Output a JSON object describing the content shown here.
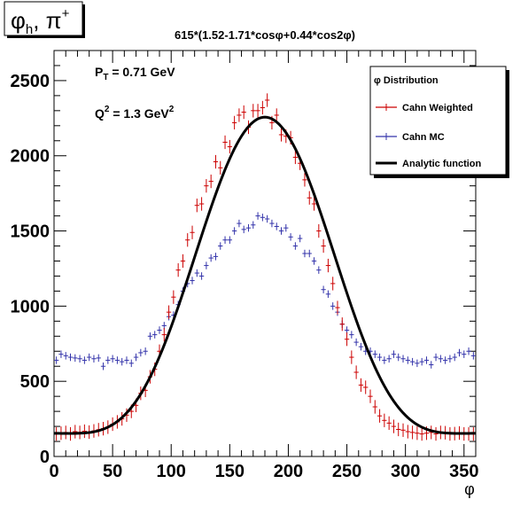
{
  "figure": {
    "tag_main": "φ",
    "tag_sub": "h",
    "tag_rest": ", π",
    "tag_sup": "+",
    "title": "615*(1.52-1.71*cosφ+0.44*cos2φ)",
    "xlabel": "φ",
    "ann_pt_main": "P",
    "ann_pt_sub": "T",
    "ann_pt_rest": " = 0.71 GeV",
    "ann_q2_main": "Q",
    "ann_q2_sup": "2",
    "ann_q2_rest": " = 1.3 GeV",
    "ann_q2_sup2": "2"
  },
  "legend": {
    "header": "φ Distribution",
    "entries": [
      {
        "label": "Cahn Weighted",
        "color": "#cc0000"
      },
      {
        "label": "Cahn MC",
        "color": "#3333aa"
      },
      {
        "label": "Analytic function",
        "color": "#000000"
      }
    ]
  },
  "chart_data": {
    "type": "scatter",
    "title": "615*(1.52-1.71*cosφ+0.44*cos2φ)",
    "xlabel": "φ",
    "ylabel": "",
    "xlim": [
      0,
      360
    ],
    "ylim": [
      0,
      2700
    ],
    "xticks": [
      0,
      50,
      100,
      150,
      200,
      250,
      300,
      350
    ],
    "yticks": [
      0,
      500,
      1000,
      1500,
      2000,
      2500
    ],
    "grid": false,
    "legend_position": "top-right",
    "function": {
      "name": "Analytic function",
      "scale": 615,
      "a0": 1.52,
      "a1": -1.71,
      "a2": 0.44,
      "color": "#000000"
    },
    "series": [
      {
        "name": "Cahn Weighted",
        "color": "#cc0000",
        "x": [
          2,
          6,
          10,
          14,
          18,
          22,
          26,
          30,
          34,
          38,
          42,
          46,
          50,
          54,
          58,
          62,
          66,
          70,
          74,
          78,
          82,
          86,
          90,
          94,
          98,
          102,
          106,
          110,
          114,
          118,
          122,
          126,
          130,
          134,
          138,
          142,
          146,
          150,
          154,
          158,
          162,
          166,
          170,
          174,
          178,
          182,
          186,
          190,
          194,
          198,
          202,
          206,
          210,
          214,
          218,
          222,
          226,
          230,
          234,
          238,
          242,
          246,
          250,
          254,
          258,
          262,
          266,
          270,
          274,
          278,
          282,
          286,
          290,
          294,
          298,
          302,
          306,
          310,
          314,
          318,
          322,
          326,
          330,
          334,
          338,
          342,
          346,
          350,
          354,
          358
        ],
        "y": [
          150,
          155,
          160,
          150,
          165,
          160,
          168,
          162,
          170,
          178,
          185,
          195,
          215,
          230,
          250,
          275,
          300,
          340,
          420,
          440,
          530,
          580,
          700,
          810,
          960,
          1060,
          1240,
          1300,
          1440,
          1490,
          1670,
          1680,
          1800,
          1830,
          1960,
          1920,
          2090,
          2060,
          2220,
          2270,
          2290,
          2190,
          2300,
          2300,
          2320,
          2370,
          2220,
          2270,
          2140,
          2130,
          2120,
          1990,
          1950,
          1840,
          1720,
          1680,
          1500,
          1400,
          1270,
          1150,
          990,
          880,
          780,
          660,
          560,
          475,
          460,
          400,
          330,
          270,
          240,
          222,
          200,
          180,
          175,
          165,
          160,
          155,
          150,
          155,
          160,
          150,
          160,
          158,
          150,
          152,
          156,
          150,
          150,
          150
        ],
        "yerr": 45
      },
      {
        "name": "Cahn MC",
        "color": "#3333aa",
        "x": [
          2,
          6,
          10,
          14,
          18,
          22,
          26,
          30,
          34,
          38,
          42,
          46,
          50,
          54,
          58,
          62,
          66,
          70,
          74,
          78,
          82,
          86,
          90,
          94,
          98,
          102,
          106,
          110,
          114,
          118,
          122,
          126,
          130,
          134,
          138,
          142,
          146,
          150,
          154,
          158,
          162,
          166,
          170,
          174,
          178,
          182,
          186,
          190,
          194,
          198,
          202,
          206,
          210,
          214,
          218,
          222,
          226,
          230,
          234,
          238,
          242,
          246,
          250,
          254,
          258,
          262,
          266,
          270,
          274,
          278,
          282,
          286,
          290,
          294,
          298,
          302,
          306,
          310,
          314,
          318,
          322,
          326,
          330,
          334,
          338,
          342,
          346,
          350,
          354,
          358
        ],
        "y": [
          640,
          680,
          670,
          660,
          655,
          650,
          640,
          660,
          650,
          655,
          600,
          640,
          650,
          640,
          630,
          640,
          620,
          660,
          690,
          700,
          800,
          810,
          840,
          870,
          930,
          940,
          1010,
          1100,
          1150,
          1170,
          1220,
          1200,
          1270,
          1320,
          1330,
          1400,
          1440,
          1440,
          1500,
          1550,
          1510,
          1520,
          1540,
          1600,
          1590,
          1580,
          1550,
          1530,
          1500,
          1520,
          1460,
          1400,
          1450,
          1350,
          1350,
          1300,
          1240,
          1110,
          1080,
          1000,
          960,
          880,
          840,
          810,
          760,
          730,
          700,
          700,
          680,
          660,
          640,
          650,
          680,
          660,
          650,
          640,
          630,
          620,
          630,
          640,
          610,
          660,
          650,
          640,
          650,
          660,
          690,
          680,
          700,
          670
        ],
        "yerr": 25
      }
    ]
  }
}
